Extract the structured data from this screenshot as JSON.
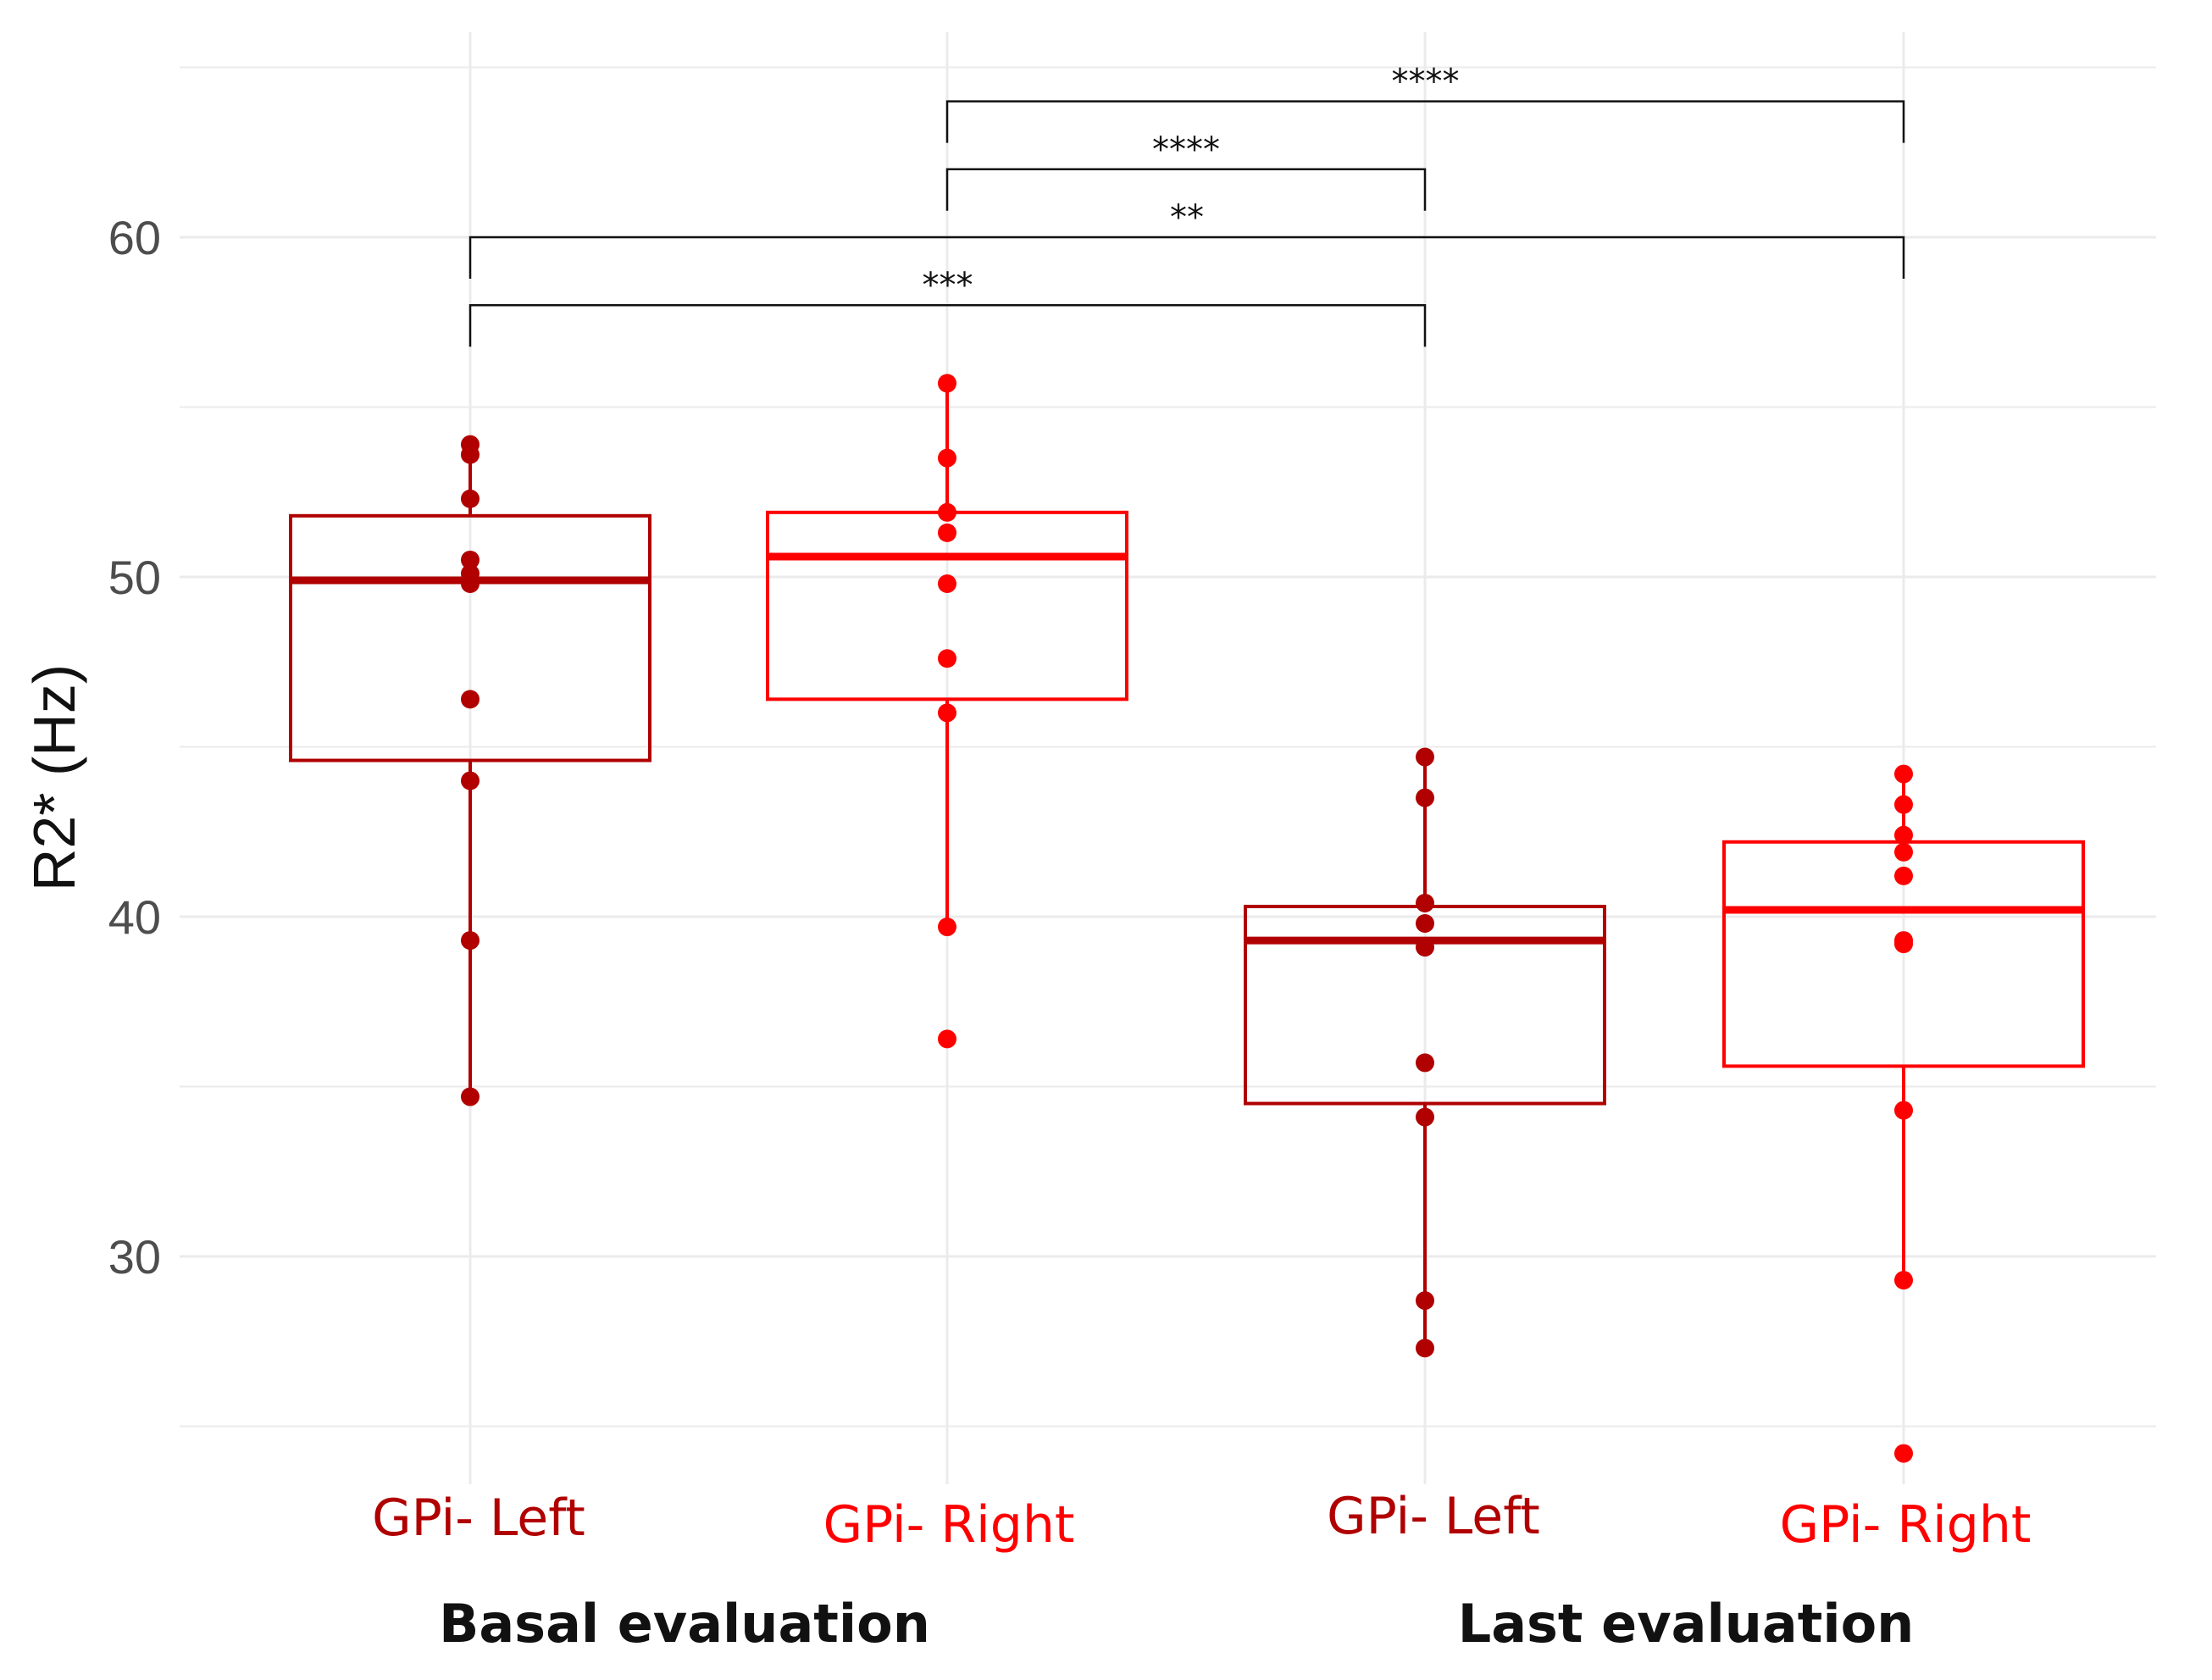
{
  "chart_data": {
    "type": "box",
    "title": "",
    "ylabel": "R2* (Hz)",
    "xlabel": "",
    "ylim": [
      24,
      65
    ],
    "yticks": [
      30,
      40,
      50,
      60
    ],
    "grid": true,
    "colors": {
      "left": "#b00000",
      "right": "#ff0000"
    },
    "groups": [
      {
        "label": "Basal evaluation"
      },
      {
        "label": "Last evaluation"
      }
    ],
    "series": [
      {
        "name": "GPi- Left",
        "group": 0,
        "color_key": "left",
        "box": {
          "q1": 44.6,
          "median": 49.9,
          "q3": 51.8,
          "whisker_low": 34.7,
          "whisker_high": 53.9
        },
        "points": [
          53.9,
          53.6,
          52.3,
          50.5,
          50.1,
          49.8,
          46.4,
          44.0,
          39.3,
          34.7
        ]
      },
      {
        "name": "GPi- Right",
        "group": 0,
        "color_key": "right",
        "box": {
          "q1": 46.4,
          "median": 50.6,
          "q3": 51.9,
          "whisker_low": 39.7,
          "whisker_high": 55.7
        },
        "points": [
          55.7,
          53.5,
          51.9,
          51.3,
          49.8,
          47.6,
          46.0,
          39.7,
          36.4
        ]
      },
      {
        "name": "GPi- Left",
        "group": 1,
        "color_key": "left",
        "box": {
          "q1": 34.5,
          "median": 39.3,
          "q3": 40.3,
          "whisker_low": 27.3,
          "whisker_high": 44.7
        },
        "points": [
          44.7,
          43.5,
          40.4,
          39.8,
          39.1,
          35.7,
          34.1,
          28.7,
          27.3
        ]
      },
      {
        "name": "GPi- Right",
        "group": 1,
        "color_key": "right",
        "box": {
          "q1": 35.6,
          "median": 40.2,
          "q3": 42.2,
          "whisker_low": 29.3,
          "whisker_high": 44.2
        },
        "points": [
          44.2,
          43.3,
          42.4,
          41.9,
          41.2,
          39.3,
          39.2,
          34.3,
          29.3,
          24.2
        ]
      }
    ],
    "significance": [
      {
        "from": 1,
        "to": 3,
        "y": 64.0,
        "label": "****"
      },
      {
        "from": 1,
        "to": 2,
        "y": 62.0,
        "label": "****"
      },
      {
        "from": 0,
        "to": 3,
        "y": 60.0,
        "label": "**"
      },
      {
        "from": 0,
        "to": 2,
        "y": 58.0,
        "label": "***"
      }
    ]
  }
}
